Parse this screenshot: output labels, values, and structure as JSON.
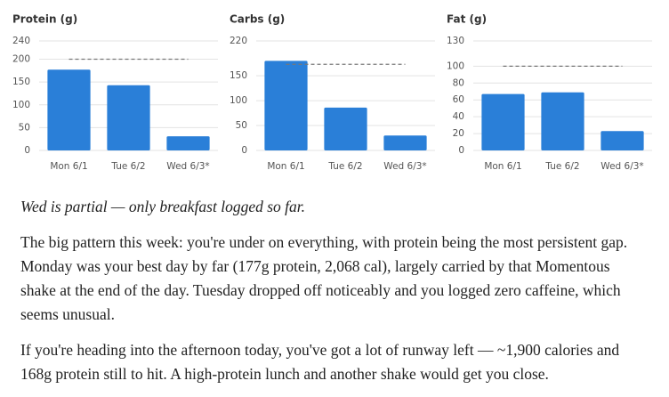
{
  "chart_data": [
    {
      "type": "bar",
      "title": "Protein (g)",
      "categories": [
        "Mon 6/1",
        "Tue 6/2",
        "Wed 6/3*"
      ],
      "values": [
        177,
        143,
        31
      ],
      "color": "#2a7fd8",
      "target": 200,
      "ylim": [
        0,
        240
      ],
      "yticks": [
        0,
        50,
        100,
        150,
        200,
        240
      ],
      "grid": true
    },
    {
      "type": "bar",
      "title": "Carbs (g)",
      "categories": [
        "Mon 6/1",
        "Tue 6/2",
        "Wed 6/3*"
      ],
      "values": [
        180,
        86,
        30
      ],
      "color": "#2a7fd8",
      "target": 173,
      "ylim": [
        0,
        220
      ],
      "yticks": [
        0,
        50,
        100,
        150,
        220
      ],
      "grid": true
    },
    {
      "type": "bar",
      "title": "Fat (g)",
      "categories": [
        "Mon 6/1",
        "Tue 6/2",
        "Wed 6/3*"
      ],
      "values": [
        67,
        69,
        23
      ],
      "color": "#2a7fd8",
      "target": 100,
      "ylim": [
        0,
        130
      ],
      "yticks": [
        0,
        20,
        40,
        60,
        80,
        100,
        130
      ],
      "grid": true
    }
  ],
  "text": {
    "note": "Wed is partial — only breakfast logged so far.",
    "paragraphs": [
      "The big pattern this week: you're under on everything, with protein being the most persistent gap. Monday was your best day by far (177g protein, 2,068 cal), largely carried by that Momentous shake at the end of the day. Tuesday dropped off noticeably and you logged zero caffeine, which seems unusual.",
      "If you're heading into the afternoon today, you've got a lot of runway left — ~1,900 calories and 168g protein still to hit. A high-protein lunch and another shake would get you close."
    ]
  }
}
